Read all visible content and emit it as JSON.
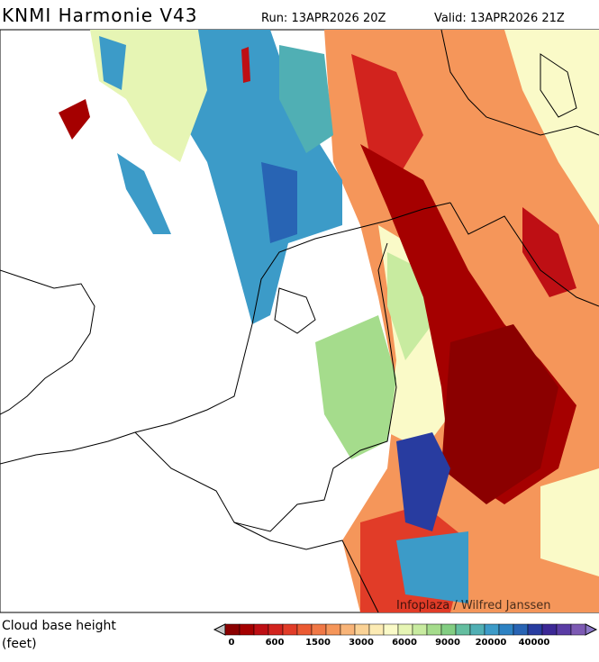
{
  "header": {
    "title": "KNMI Harmonie V43",
    "run": "Run: 13APR2026 20Z",
    "valid": "Valid: 13APR2026 21Z"
  },
  "map": {
    "credit": "Infoplaza / Wilfred Janssen"
  },
  "legend": {
    "label_line1": "Cloud base height",
    "label_line2": "(feet)",
    "colors": [
      "#8b0000",
      "#a50000",
      "#be0f14",
      "#d2231e",
      "#e13c28",
      "#eb5a32",
      "#f07846",
      "#f5965a",
      "#f8b478",
      "#fad296",
      "#fcebb4",
      "#fafac8",
      "#e6f5b4",
      "#c8eba0",
      "#a5dc8c",
      "#82cd82",
      "#64bea0",
      "#50afb4",
      "#3c9bc8",
      "#2d82c3",
      "#2864b4",
      "#283ca0",
      "#3c2896",
      "#5a3ca5",
      "#7d5ab4"
    ],
    "tick_labels": [
      "0",
      "600",
      "1500",
      "3000",
      "6000",
      "9000",
      "20000",
      "40000"
    ]
  }
}
